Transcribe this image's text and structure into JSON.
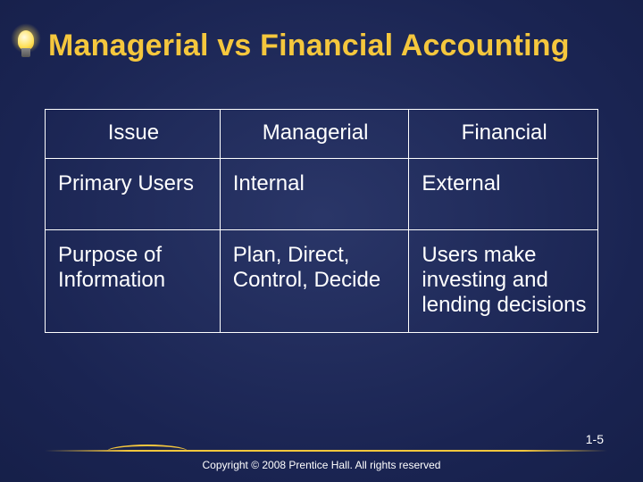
{
  "title": "Managerial vs Financial Accounting",
  "table": {
    "columns": [
      "Issue",
      "Managerial",
      "Financial"
    ],
    "rows": [
      [
        "Primary Users",
        "Internal",
        "External"
      ],
      [
        "Purpose of Information",
        "Plan, Direct, Control, Decide",
        "Users make investing and lending decisions"
      ]
    ],
    "border_color": "#ffffff",
    "text_color": "#ffffff",
    "font_size_pt": 18
  },
  "page_number": "1-5",
  "copyright": "Copyright © 2008 Prentice Hall. All rights reserved",
  "colors": {
    "title": "#f5c73d",
    "background_inner": "#2a3668",
    "background_outer": "#0d1535",
    "divider": "#f5c73d"
  },
  "icon": "lightbulb-icon"
}
